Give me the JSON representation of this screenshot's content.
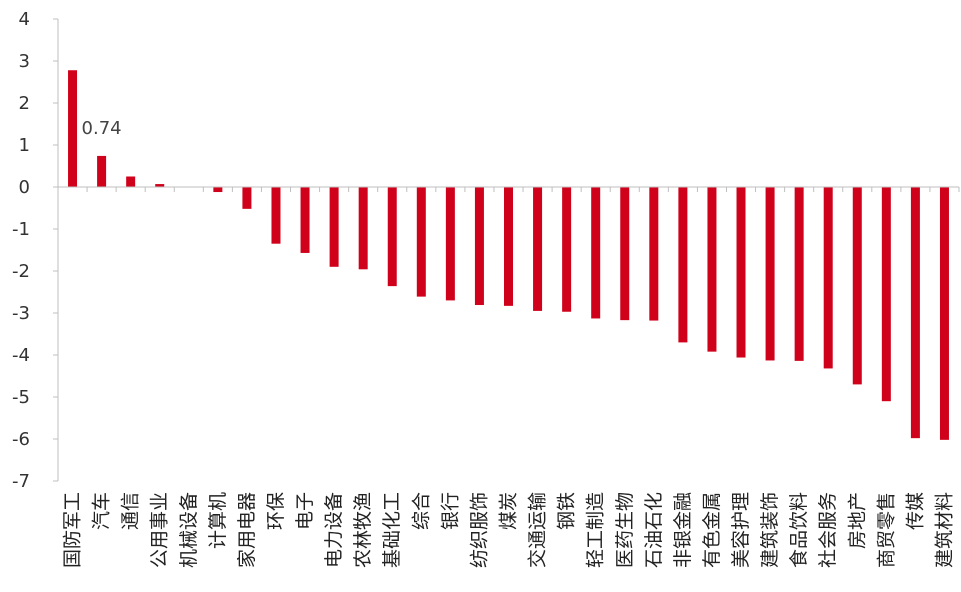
{
  "chart_data": {
    "type": "bar",
    "ylim": [
      -7,
      4
    ],
    "yticks": [
      4,
      3,
      2,
      1,
      0,
      -1,
      -2,
      -3,
      -4,
      -5,
      -6,
      -7
    ],
    "grid": false,
    "bar_color": "#d0021b",
    "categories": [
      "国防军工",
      "汽车",
      "通信",
      "公用事业",
      "机械设备",
      "计算机",
      "家用电器",
      "环保",
      "电子",
      "电力设备",
      "农林牧渔",
      "基础化工",
      "综合",
      "银行",
      "纺织服饰",
      "煤炭",
      "交通运输",
      "钢铁",
      "轻工制造",
      "医药生物",
      "石油石化",
      "非银金融",
      "有色金属",
      "美容护理",
      "建筑装饰",
      "食品饮料",
      "社会服务",
      "房地产",
      "商贸零售",
      "传媒",
      "建筑材料"
    ],
    "values": [
      2.78,
      0.74,
      0.25,
      0.07,
      0.01,
      -0.12,
      -0.52,
      -1.35,
      -1.57,
      -1.9,
      -1.96,
      -2.36,
      -2.61,
      -2.7,
      -2.81,
      -2.83,
      -2.95,
      -2.97,
      -3.13,
      -3.17,
      -3.18,
      -3.7,
      -3.92,
      -4.06,
      -4.13,
      -4.14,
      -4.32,
      -4.7,
      -5.1,
      -5.98,
      -6.02
    ],
    "data_labels": [
      {
        "index": 1,
        "text": "0.74"
      }
    ]
  }
}
